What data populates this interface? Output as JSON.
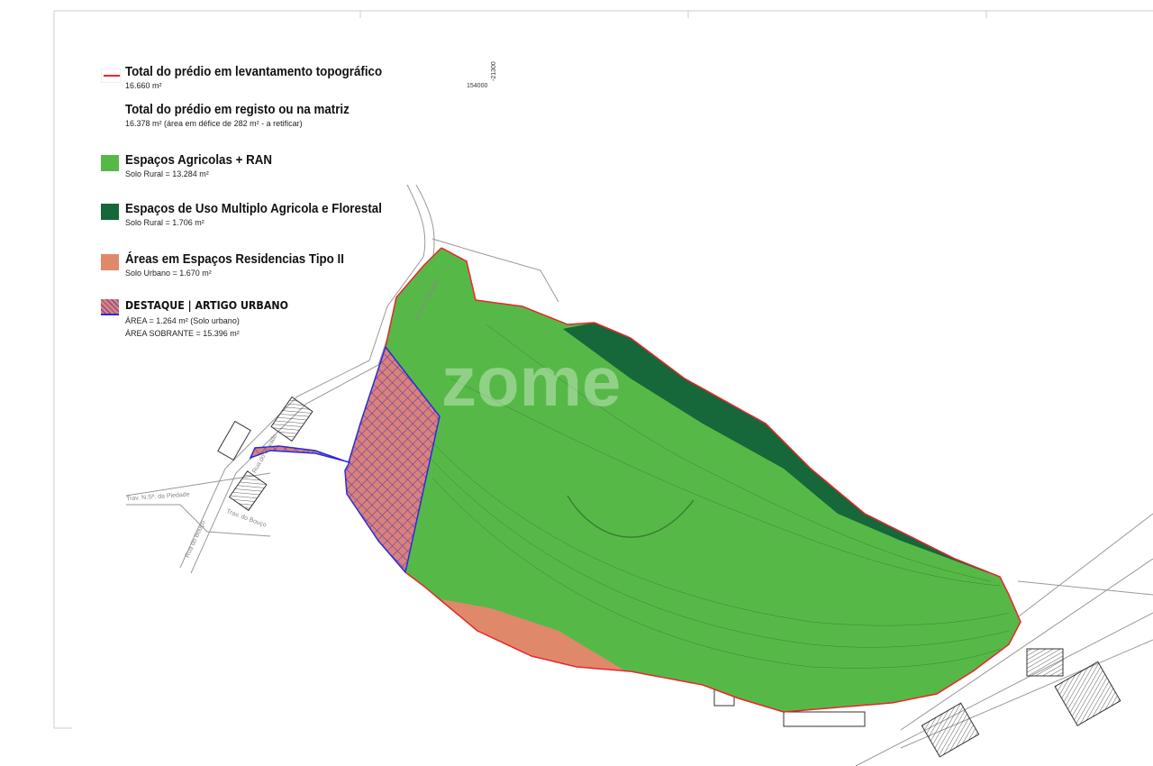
{
  "legend": {
    "survey_total": {
      "title": "Total do prédio em levantamento topográfico",
      "value": "16.660 m²",
      "line_color": "#e8262a"
    },
    "registry_total": {
      "title": "Total do prédio em registo ou na matriz",
      "value": "16.378 m² (área em défice de 282 m² - a retificar)"
    },
    "agricultural": {
      "title": "Espaços Agricolas + RAN",
      "value": "Solo Rural = 13.284 m²",
      "color": "#56b947"
    },
    "multiple_use": {
      "title": "Espaços de Uso Multiplo Agricola e Florestal",
      "value": "Solo Rural = 1.706 m²",
      "color": "#16673a"
    },
    "residential": {
      "title": "Áreas em Espaços Residencias Tipo II",
      "value": "Solo Urbano = 1.670 m²",
      "color": "#e0896a"
    },
    "destaque": {
      "title": "DESTAQUE | ARTIGO URBANO",
      "area": "ÁREA = 1.264 m² (Solo urbano)",
      "remaining": "ÁREA SOBRANTE = 15.396 m²",
      "color": "#d47a7a",
      "hatch_color": "#3a2fd0"
    }
  },
  "coordinates": {
    "y_label": "-21300",
    "x_label": "154000"
  },
  "streets": [
    "Rua do Covado",
    "Trav. N.Sª. da Piedade",
    "Rua do Bouço",
    "Trav. do Bouço"
  ],
  "watermark": "zome"
}
